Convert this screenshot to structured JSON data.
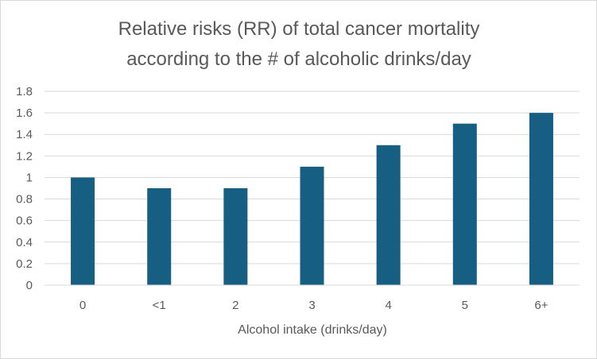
{
  "chart_data": {
    "type": "bar",
    "title_lines": [
      "Relative risks (RR) of total cancer mortality",
      "according to the # of alcoholic drinks/day"
    ],
    "categories": [
      "0",
      "<1",
      "2",
      "3",
      "4",
      "5",
      "6+"
    ],
    "values": [
      1.0,
      0.9,
      0.9,
      1.1,
      1.3,
      1.5,
      1.6
    ],
    "xlabel": "Alcohol intake (drinks/day)",
    "ylabel": "",
    "ylim": [
      0,
      1.8
    ],
    "yticks": [
      "0",
      "0.2",
      "0.4",
      "0.6",
      "0.8",
      "1",
      "1.2",
      "1.4",
      "1.6",
      "1.8"
    ],
    "grid": true,
    "legend": "none",
    "bar_color": "#175E83",
    "grid_color": "#d9d9d9",
    "text_color": "#595959"
  }
}
